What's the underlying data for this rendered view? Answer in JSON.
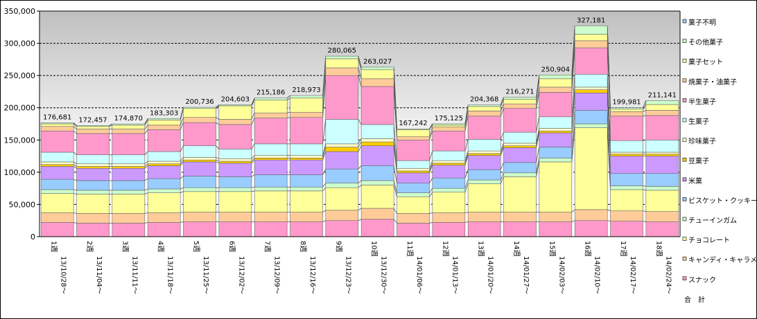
{
  "chart_data": {
    "type": "bar",
    "stacked": true,
    "title": "",
    "xlabel": "",
    "ylabel": "",
    "ylim": [
      0,
      350000
    ],
    "yticks": [
      0,
      50000,
      100000,
      150000,
      200000,
      250000,
      300000,
      350000
    ],
    "ytick_labels": [
      "0",
      "50,000",
      "100,000",
      "150,000",
      "200,000",
      "250,000",
      "300,000",
      "350,000"
    ],
    "grid": true,
    "legend_position": "right",
    "categories": [
      {
        "week": "1週",
        "date": "13/10/28～"
      },
      {
        "week": "2週",
        "date": "13/11/04～"
      },
      {
        "week": "3週",
        "date": "13/11/11～"
      },
      {
        "week": "4週",
        "date": "13/11/18～"
      },
      {
        "week": "5週",
        "date": "13/11/25～"
      },
      {
        "week": "6週",
        "date": "13/12/02～"
      },
      {
        "week": "7週",
        "date": "13/12/09～"
      },
      {
        "week": "8週",
        "date": "13/12/16～"
      },
      {
        "week": "9週",
        "date": "13/12/23～"
      },
      {
        "week": "10週",
        "date": "13/12/30～"
      },
      {
        "week": "11週",
        "date": "14/01/06～"
      },
      {
        "week": "12週",
        "date": "14/01/13～"
      },
      {
        "week": "13週",
        "date": "14/01/20～"
      },
      {
        "week": "14週",
        "date": "14/01/27～"
      },
      {
        "week": "15週",
        "date": "14/02/03～"
      },
      {
        "week": "16週",
        "date": "14/02/10～"
      },
      {
        "week": "17週",
        "date": "14/02/17～"
      },
      {
        "week": "18週",
        "date": "14/02/24～"
      }
    ],
    "totals": [
      176681,
      172457,
      174870,
      183303,
      200736,
      204603,
      215186,
      218973,
      280065,
      263027,
      167242,
      175125,
      204368,
      216271,
      250904,
      327181,
      199981,
      211141
    ],
    "totals_labels": [
      "176,681",
      "172,457",
      "174,870",
      "183,303",
      "200,736",
      "204,603",
      "215,186",
      "218,973",
      "280,065",
      "263,027",
      "167,242",
      "175,125",
      "204,368",
      "216,271",
      "250,904",
      "327,181",
      "199,981",
      "211,141"
    ],
    "series": [
      {
        "name": "スナック",
        "color": "#ff99cc",
        "values": [
          22000,
          21000,
          21000,
          22000,
          23000,
          23000,
          23000,
          23000,
          25000,
          27000,
          21000,
          22000,
          23000,
          23000,
          23000,
          25000,
          24000,
          23000
        ]
      },
      {
        "name": "キャンディ・キャラメル",
        "color": "#ffcc99",
        "values": [
          15000,
          15000,
          15000,
          15000,
          15000,
          15000,
          15000,
          15000,
          16000,
          17000,
          15000,
          15000,
          15000,
          15000,
          15000,
          17000,
          16000,
          16000
        ]
      },
      {
        "name": "チョコレート",
        "color": "#ffff99",
        "values": [
          30000,
          30000,
          30000,
          31000,
          32000,
          32000,
          33000,
          33000,
          35000,
          36000,
          26000,
          32000,
          44000,
          55000,
          78000,
          127000,
          33000,
          33000
        ]
      },
      {
        "name": "チューインガム",
        "color": "#ccffcc",
        "values": [
          6000,
          6000,
          6000,
          6000,
          6000,
          6000,
          6000,
          6000,
          7000,
          7000,
          6000,
          6000,
          6000,
          6000,
          6000,
          6000,
          6000,
          6000
        ]
      },
      {
        "name": "ビスケット・クッキー",
        "color": "#99ccff",
        "values": [
          16000,
          15000,
          15000,
          16000,
          18000,
          17000,
          19000,
          19000,
          22000,
          23000,
          15000,
          16000,
          16000,
          16000,
          17000,
          21000,
          19000,
          20000
        ]
      },
      {
        "name": "米菓",
        "color": "#cc99ff",
        "values": [
          20000,
          19000,
          19000,
          20000,
          22000,
          21000,
          23000,
          23000,
          27000,
          31000,
          16000,
          20000,
          22000,
          23000,
          22000,
          27000,
          27000,
          27000
        ]
      },
      {
        "name": "豆菓子",
        "color": "#ffcc00",
        "values": [
          3000,
          3000,
          3000,
          3000,
          3000,
          3000,
          3000,
          3000,
          7000,
          6000,
          3000,
          3000,
          3000,
          3000,
          3000,
          5000,
          3000,
          3000
        ]
      },
      {
        "name": "珍味菓子",
        "color": "#ffffcc",
        "values": [
          4000,
          4000,
          4000,
          4000,
          4000,
          4000,
          4000,
          4000,
          5000,
          5000,
          4000,
          4000,
          4000,
          4000,
          4000,
          4000,
          3000,
          3000
        ]
      },
      {
        "name": "生菓子",
        "color": "#ccffff",
        "values": [
          15000,
          14000,
          14000,
          15000,
          18000,
          15000,
          18000,
          18000,
          38000,
          22000,
          12000,
          15000,
          18000,
          17000,
          18000,
          20000,
          18000,
          19000
        ]
      },
      {
        "name": "半生菓子",
        "color": "#ff99cc",
        "values": [
          33000,
          33000,
          33000,
          34000,
          36000,
          38000,
          40000,
          41000,
          68000,
          59000,
          32000,
          31000,
          36000,
          37000,
          38000,
          41000,
          38000,
          38000
        ]
      },
      {
        "name": "焼菓子・油菓子",
        "color": "#ffcc99",
        "values": [
          7000,
          7000,
          7000,
          7000,
          8000,
          8000,
          8000,
          8000,
          12000,
          12000,
          5000,
          6000,
          8000,
          7000,
          8000,
          11000,
          7000,
          8000
        ]
      },
      {
        "name": "菓子セット",
        "color": "#ffff99",
        "values": [
          4000,
          4000,
          6000,
          8000,
          14000,
          21000,
          20000,
          22000,
          14000,
          14000,
          11000,
          3000,
          7000,
          7000,
          13000,
          10000,
          4000,
          9000
        ]
      },
      {
        "name": "その他菓子",
        "color": "#ccffcc",
        "values": [
          1681,
          1457,
          1870,
          2303,
          1736,
          1603,
          3186,
          3973,
          4065,
          4027,
          1242,
          2125,
          2368,
          3271,
          5904,
          13181,
          1981,
          6141
        ]
      },
      {
        "name": "菓子不明",
        "color": "#99ccff",
        "values": [
          0,
          0,
          0,
          0,
          0,
          0,
          0,
          0,
          0,
          0,
          0,
          0,
          0,
          0,
          0,
          0,
          0,
          0
        ]
      }
    ],
    "legend_entries": [
      "菓子不明",
      "その他菓子",
      "菓子セット",
      "焼菓子・油菓子",
      "半生菓子",
      "生菓子",
      "珍味菓子",
      "豆菓子",
      "米菓",
      "ビスケット・クッキー",
      "チューインガム",
      "チョコレート",
      "キャンディ・キャラメル",
      "スナック",
      "合　計"
    ]
  }
}
